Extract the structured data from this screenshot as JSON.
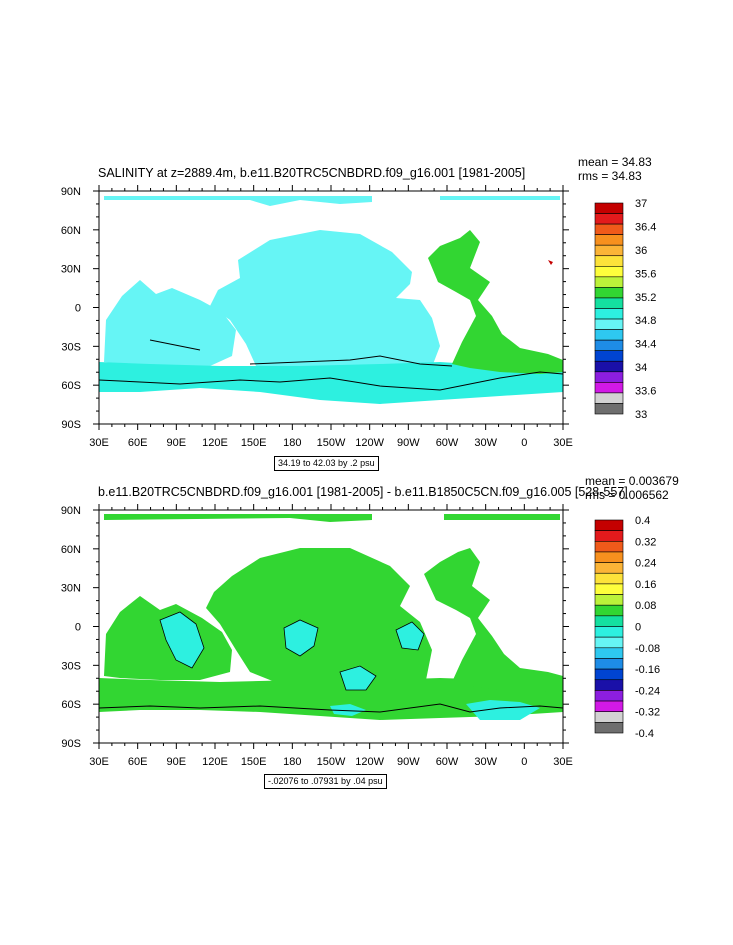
{
  "chart_data": [
    {
      "type": "heatmap",
      "title": "SALINITY at z=2889.4m, b.e11.B20TRC5CNBDRD.f09_g16.001 [1981-2005]",
      "stats": {
        "mean": "mean = 34.83",
        "rms": "rms = 34.83"
      },
      "x_ticks": [
        "30E",
        "60E",
        "90E",
        "120E",
        "150E",
        "180",
        "150W",
        "120W",
        "90W",
        "60W",
        "30W",
        "0",
        "30E"
      ],
      "y_ticks": [
        "90N",
        "60N",
        "30N",
        "0",
        "30S",
        "60S",
        "90S"
      ],
      "colorbar_labels": [
        "37",
        "36.4",
        "36",
        "35.6",
        "35.2",
        "34.8",
        "34.4",
        "34",
        "33.6",
        "33"
      ],
      "colorbar_colors": [
        "#c40000",
        "#e31a1c",
        "#f05a1a",
        "#f7901e",
        "#fbb437",
        "#fde23a",
        "#fefe3c",
        "#bcf23a",
        "#32d632",
        "#14e0a0",
        "#2df0e0",
        "#66f5f5",
        "#2ec8f0",
        "#1e8ce6",
        "#0044d2",
        "#1a10a8",
        "#8c1ee0",
        "#d219e6",
        "#d2d2d2",
        "#6e6e6e"
      ],
      "range_label": "34.19 to 42.03 by .2 psu",
      "dominant_colors": {
        "pacific": "#66f5f5",
        "atlantic": "#32d632",
        "southern": "#2df0e0"
      }
    },
    {
      "type": "heatmap",
      "title": "b.e11.B20TRC5CNBDRD.f09_g16.001 [1981-2005] - b.e11.B1850C5CN.f09_g16.005 [528-557]",
      "stats": {
        "mean": "mean = 0.003679",
        "rms": "rms = 0.006562"
      },
      "x_ticks": [
        "30E",
        "60E",
        "90E",
        "120E",
        "150E",
        "180",
        "150W",
        "120W",
        "90W",
        "60W",
        "30W",
        "0",
        "30E"
      ],
      "y_ticks": [
        "90N",
        "60N",
        "30N",
        "0",
        "30S",
        "60S",
        "90S"
      ],
      "colorbar_labels": [
        "0.4",
        "0.32",
        "0.24",
        "0.16",
        "0.08",
        "0",
        "-0.08",
        "-0.16",
        "-0.24",
        "-0.32",
        "-0.4"
      ],
      "colorbar_colors": [
        "#c40000",
        "#e31a1c",
        "#f05a1a",
        "#f7901e",
        "#fbb437",
        "#fde23a",
        "#fefe3c",
        "#bcf23a",
        "#32d632",
        "#14e0a0",
        "#2df0e0",
        "#66f5f5",
        "#2ec8f0",
        "#1e8ce6",
        "#0044d2",
        "#1a10a8",
        "#8c1ee0",
        "#d219e6",
        "#d2d2d2",
        "#6e6e6e"
      ],
      "range_label": "-.02076 to .07931 by .04 psu",
      "dominant_colors": {
        "ocean": "#32d632",
        "negative": "#2df0e0"
      }
    }
  ]
}
